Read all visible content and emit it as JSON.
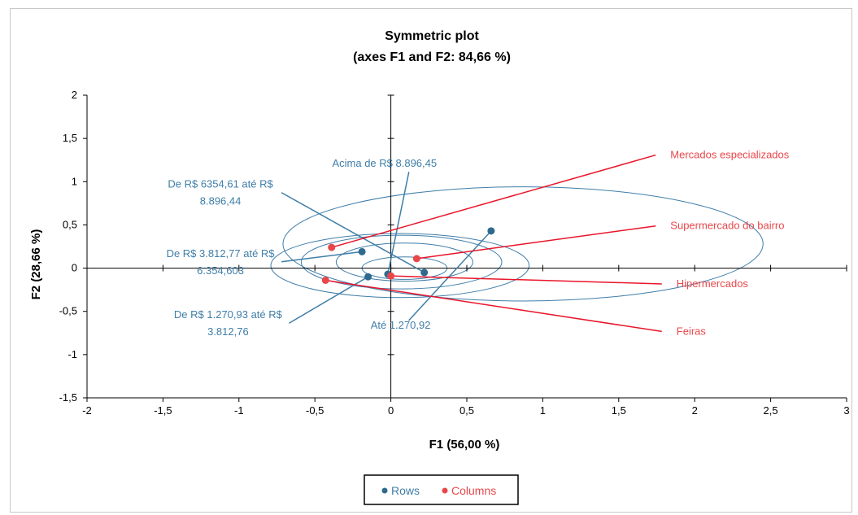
{
  "chart_data": {
    "type": "scatter",
    "title": "Symmetric plot",
    "subtitle": "(axes F1 and F2: 84,66 %)",
    "xlabel": "F1 (56,00 %)",
    "ylabel": "F2 (28,66 %)",
    "xlim": [
      -2,
      3
    ],
    "ylim": [
      -1.5,
      2
    ],
    "x_ticks": [
      "-2",
      "-1,5",
      "-1",
      "-0,5",
      "0",
      "0,5",
      "1",
      "1,5",
      "2",
      "2,5",
      "3"
    ],
    "x_tick_values": [
      -2,
      -1.5,
      -1,
      -0.5,
      0,
      0.5,
      1,
      1.5,
      2,
      2.5,
      3
    ],
    "y_ticks": [
      "2",
      "1,5",
      "1",
      "0,5",
      "0",
      "-0,5",
      "-1",
      "-1,5"
    ],
    "y_tick_values": [
      2,
      1.5,
      1,
      0.5,
      0,
      -0.5,
      -1,
      -1.5
    ],
    "grid": false,
    "legend_placement": "bottom-center",
    "series": [
      {
        "name": "Rows",
        "color": "#2e6a8e",
        "points": [
          {
            "label": "Acima de R$ 8.896,45",
            "x": -0.02,
            "y": -0.07,
            "label_x": -0.47,
            "label_y": 1.17,
            "label_lines": [
              "Acima de R$ 8.896,45"
            ]
          },
          {
            "label": "De R$ 6354,61 até R$ 8.896,44",
            "x": 0.22,
            "y": -0.05,
            "label_x": -1.55,
            "label_y": 0.93,
            "label_lines": [
              "De R$ 6354,61 até R$",
              "8.896,44"
            ]
          },
          {
            "label": "De R$ 3.812,77 até R$ 6.354,603",
            "x": -0.19,
            "y": 0.19,
            "label_x": -1.55,
            "label_y": 0.13,
            "label_lines": [
              "De R$ 3.812,77 até R$",
              "6.354,603"
            ]
          },
          {
            "label": "De R$ 1.270,93 até R$ 3.812,76",
            "x": -0.15,
            "y": -0.1,
            "label_x": -1.5,
            "label_y": -0.58,
            "label_lines": [
              "De R$ 1.270,93 até R$",
              "3.812,76"
            ]
          },
          {
            "label": "Até 1.270,92",
            "x": 0.66,
            "y": 0.43,
            "label_x": -0.15,
            "label_y": -0.7,
            "label_lines": [
              "Até 1.270,92"
            ]
          }
        ]
      },
      {
        "name": "Columns",
        "color": "#e8474a",
        "points": [
          {
            "label": "Mercados especializados",
            "x": -0.39,
            "y": 0.24,
            "label_x": 1.84,
            "label_y": 1.27,
            "label_lines": [
              "Mercados especializados"
            ]
          },
          {
            "label": "Supermercado do bairro",
            "x": 0.17,
            "y": 0.11,
            "label_x": 1.84,
            "label_y": 0.45,
            "label_lines": [
              "Supermercado do bairro"
            ]
          },
          {
            "label": "Hipermercados",
            "x": 0.0,
            "y": -0.09,
            "label_x": 1.88,
            "label_y": -0.22,
            "label_lines": [
              "Hipermercados"
            ]
          },
          {
            "label": "Feiras",
            "x": -0.43,
            "y": -0.14,
            "label_x": 1.88,
            "label_y": -0.77,
            "label_lines": [
              "Feiras"
            ]
          }
        ]
      }
    ],
    "ellipses": [
      {
        "cx": 0.87,
        "cy": 0.28,
        "rx": 1.58,
        "ry": 0.66
      },
      {
        "cx": 0.06,
        "cy": 0.03,
        "rx": 0.85,
        "ry": 0.37
      },
      {
        "cx": 0.07,
        "cy": 0.07,
        "rx": 0.66,
        "ry": 0.31
      },
      {
        "cx": 0.09,
        "cy": 0.07,
        "rx": 0.45,
        "ry": 0.22
      },
      {
        "cx": 0.09,
        "cy": 0.0,
        "rx": 0.28,
        "ry": 0.13
      }
    ]
  }
}
